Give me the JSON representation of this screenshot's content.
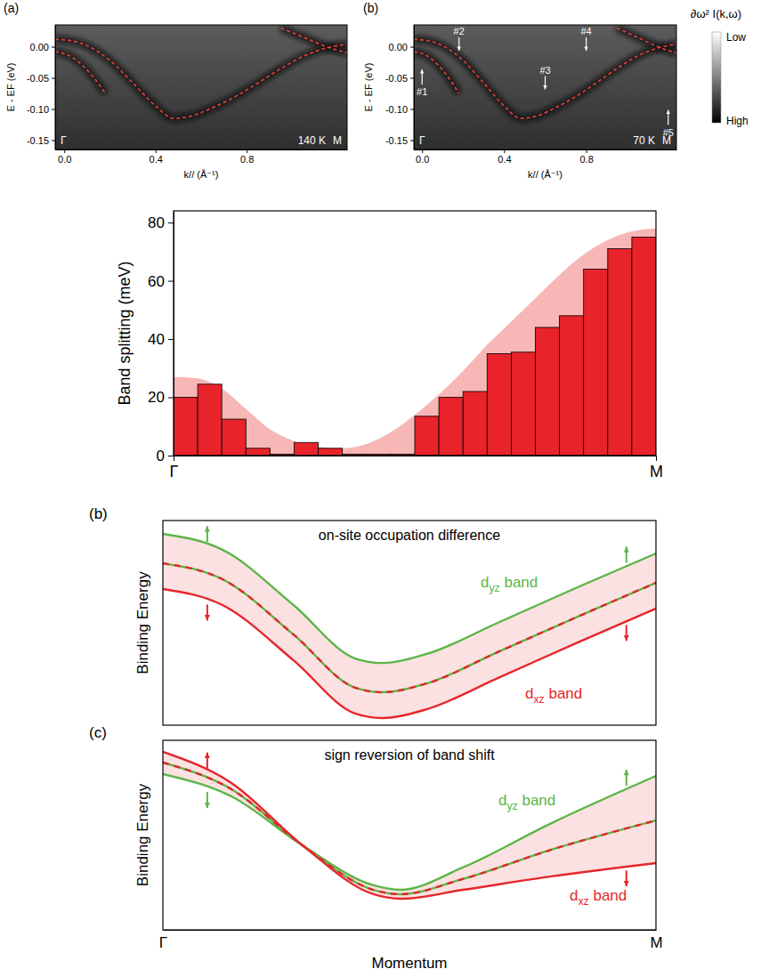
{
  "chart_data": [
    {
      "type": "line",
      "panel": "(a)",
      "xlabel": "k// (Å⁻¹)",
      "ylabel": "E - EF (eV)",
      "xlim": [
        -0.04,
        1.24
      ],
      "ylim": [
        -0.165,
        0.035
      ],
      "xticks": [
        {
          "value": 0,
          "label": "0.0"
        },
        0.4,
        0.8
      ],
      "yticks": [
        {
          "value": 0,
          "label": "0.00"
        },
        -0.05,
        {
          "value": -0.1,
          "label": "-0.10"
        },
        -0.15
      ],
      "corner_labels": [
        "Γ",
        "M"
      ],
      "temperature": "140 K",
      "series": [
        {
          "color": "#e8413a",
          "line_style": "dashed",
          "x": [
            -0.04,
            0.02,
            0.08,
            0.13,
            0.18
          ],
          "values": [
            -0.008,
            -0.014,
            -0.03,
            -0.05,
            -0.075
          ]
        },
        {
          "color": "#e8413a",
          "line_style": "dashed",
          "x": [
            -0.04,
            0.05,
            0.12,
            0.2,
            0.3,
            0.4,
            0.48,
            0.55,
            0.65,
            0.75,
            0.85,
            0.95,
            1.05,
            1.15,
            1.24
          ],
          "values": [
            0.012,
            0.008,
            -0.002,
            -0.022,
            -0.058,
            -0.095,
            -0.115,
            -0.112,
            -0.098,
            -0.08,
            -0.058,
            -0.035,
            -0.015,
            -0.002,
            0.004
          ]
        },
        {
          "color": "#e8413a",
          "line_style": "dashed",
          "x": [
            0.95,
            1.05,
            1.15,
            1.24
          ],
          "values": [
            0.03,
            0.015,
            0.0,
            -0.01
          ]
        }
      ]
    },
    {
      "type": "line",
      "panel": "(b)",
      "xlabel": "k// (Å⁻¹)",
      "ylabel": "E - EF (eV)",
      "xlim": [
        -0.04,
        1.24
      ],
      "ylim": [
        -0.165,
        0.035
      ],
      "xticks": [
        {
          "value": 0,
          "label": "0.0"
        },
        0.4,
        0.8
      ],
      "yticks": [
        {
          "value": 0,
          "label": "0.00"
        },
        -0.05,
        {
          "value": -0.1,
          "label": "-0.10"
        },
        -0.15
      ],
      "corner_labels": [
        "Γ",
        "M"
      ],
      "temperature": "70 K",
      "annotations": [
        {
          "text": "#1",
          "x": 0.0,
          "y": -0.035
        },
        {
          "text": "#2",
          "x": 0.18,
          "y": -0.008
        },
        {
          "text": "#3",
          "x": 0.6,
          "y": -0.07
        },
        {
          "text": "#4",
          "x": 0.8,
          "y": -0.008
        },
        {
          "text": "#5",
          "x": 1.2,
          "y": -0.1
        }
      ],
      "colorbar": {
        "title": "∂ω² I(k,ω)",
        "labels": [
          "Low",
          "High"
        ]
      },
      "series": [
        {
          "color": "#e8413a",
          "line_style": "dashed",
          "x": [
            -0.04,
            0.02,
            0.08,
            0.13,
            0.18
          ],
          "values": [
            -0.008,
            -0.014,
            -0.03,
            -0.05,
            -0.075
          ]
        },
        {
          "color": "#e8413a",
          "line_style": "dashed",
          "x": [
            -0.04,
            0.05,
            0.12,
            0.2,
            0.3,
            0.4,
            0.48,
            0.55,
            0.65,
            0.75,
            0.85,
            0.95,
            1.05,
            1.15,
            1.24
          ],
          "values": [
            0.012,
            0.008,
            -0.002,
            -0.022,
            -0.058,
            -0.095,
            -0.115,
            -0.112,
            -0.098,
            -0.08,
            -0.058,
            -0.035,
            -0.015,
            -0.002,
            0.004
          ]
        },
        {
          "color": "#e8413a",
          "line_style": "dashed",
          "x": [
            0.95,
            1.05,
            1.15,
            1.24
          ],
          "values": [
            0.03,
            0.015,
            0.0,
            -0.01
          ]
        }
      ]
    },
    {
      "type": "bar",
      "ylabel": "Band splitting (meV)",
      "bins": [
        0,
        1,
        2,
        3,
        4,
        5,
        6,
        7,
        8,
        9,
        10,
        11,
        12,
        13,
        14,
        15,
        16,
        17,
        18,
        19,
        20
      ],
      "values": [
        20,
        24.5,
        12.5,
        2.5,
        0.5,
        4.5,
        2.5,
        0.5,
        0.5,
        0.5,
        13.5,
        20,
        22,
        35,
        35.5,
        44,
        48,
        64,
        71,
        75
      ],
      "color": "#e8232a",
      "xlim": [
        0,
        20
      ],
      "ylim": [
        0,
        84
      ],
      "xticks": [
        {
          "value": 0,
          "label": "Γ"
        },
        {
          "value": 20,
          "label": "M"
        }
      ],
      "yticks": [
        0,
        20,
        40,
        60,
        80
      ],
      "band": {
        "color": "#f7b7b7",
        "x": [
          0,
          1,
          2,
          3,
          4,
          5,
          6,
          7,
          8,
          9,
          10,
          11,
          12,
          13,
          14,
          15,
          16,
          17,
          18,
          19,
          20
        ],
        "values": [
          27,
          26.5,
          23,
          16,
          9,
          5,
          3,
          2.5,
          4,
          8,
          14,
          21,
          29,
          38,
          46,
          54,
          62,
          69,
          74,
          77,
          78
        ]
      }
    },
    {
      "type": "line",
      "panel": "(b)",
      "title": "on-site occupation difference",
      "ylabel": "Binding Energy",
      "tick_labels": false,
      "xlim": [
        0,
        1
      ],
      "ylim": [
        0,
        1
      ],
      "color": "#fbe1e1",
      "series": [
        {
          "name": "dyz band",
          "color": "#5cb547",
          "x": [
            0,
            0.121,
            0.265,
            0.39,
            0.444,
            0.535,
            0.679,
            0.841,
            1
          ],
          "values": [
            0.935,
            0.857,
            0.587,
            0.326,
            0.304,
            0.348,
            0.5,
            0.674,
            0.839
          ]
        },
        {
          "color": "#e5262a",
          "line_style": "dashed",
          "x": [
            0,
            0.121,
            0.265,
            0.39,
            0.444,
            0.535,
            0.679,
            0.841,
            1
          ],
          "values": [
            0.791,
            0.713,
            0.443,
            0.183,
            0.161,
            0.204,
            0.357,
            0.53,
            0.696
          ]
        },
        {
          "name": "dxz band",
          "color": "#e5262a",
          "x": [
            0,
            0.121,
            0.265,
            0.39,
            0.444,
            0.535,
            0.679,
            0.841,
            1
          ],
          "values": [
            0.665,
            0.587,
            0.317,
            0.057,
            0.035,
            0.078,
            0.23,
            0.404,
            0.57
          ]
        }
      ]
    },
    {
      "type": "line",
      "panel": "(c)",
      "title": "sign reversion of band shift",
      "ylabel": "Binding Energy",
      "xlabel": "Momentum",
      "tick_labels": "x",
      "xlim": [
        0,
        1
      ],
      "ylim": [
        0,
        1
      ],
      "color": "#fbe1e1",
      "xticks": [
        {
          "value": 0,
          "label": "Γ"
        },
        {
          "value": 1,
          "label": "M"
        }
      ],
      "series": [
        {
          "name": "dyz band",
          "color": "#5cb547",
          "x": [
            0,
            0.139,
            0.283,
            0.427,
            0.482,
            0.608,
            0.788,
            1
          ],
          "values": [
            0.822,
            0.704,
            0.446,
            0.235,
            0.211,
            0.329,
            0.563,
            0.812
          ]
        },
        {
          "color": "#e5262a",
          "line_style": "dashed",
          "x": [
            0,
            0.139,
            0.283,
            0.427,
            0.482,
            0.608,
            0.788,
            1
          ],
          "values": [
            0.883,
            0.742,
            0.446,
            0.211,
            0.188,
            0.268,
            0.423,
            0.577
          ]
        },
        {
          "name": "dxz band",
          "color": "#e5262a",
          "x": [
            0,
            0.139,
            0.283,
            0.427,
            0.482,
            0.608,
            0.788,
            1
          ],
          "values": [
            0.939,
            0.775,
            0.446,
            0.188,
            0.164,
            0.211,
            0.282,
            0.352
          ]
        }
      ]
    }
  ]
}
